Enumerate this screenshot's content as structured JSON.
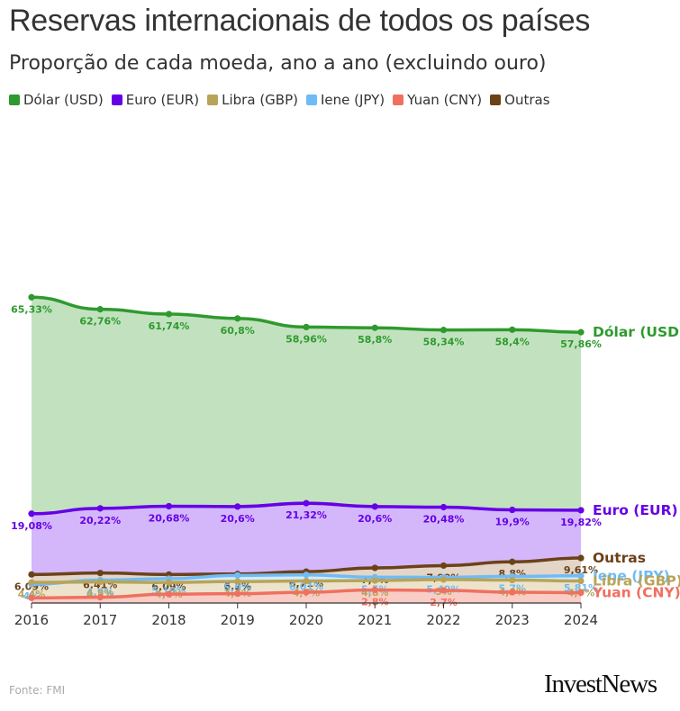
{
  "title": "Reservas internacionais de todos os países",
  "subtitle": "Proporção de cada moeda, ano a ano (excluindo ouro)",
  "source": "Fonte: FMI",
  "brand": "InvestNews",
  "legend": [
    {
      "label": "Dólar (USD)",
      "color": "#2e9a2e"
    },
    {
      "label": "Euro (EUR)",
      "color": "#6600e6"
    },
    {
      "label": "Libra (GBP)",
      "color": "#b8a458"
    },
    {
      "label": "Iene (JPY)",
      "color": "#6fbbf5"
    },
    {
      "label": "Yuan (CNY)",
      "color": "#f07060"
    },
    {
      "label": "Outras",
      "color": "#6b4218"
    }
  ],
  "chart_data": {
    "type": "area",
    "title": "Reservas internacionais de todos os países",
    "subtitle": "Proporção de cada moeda, ano a ano (excluindo ouro)",
    "x": [
      "2016",
      "2017",
      "2018",
      "2019",
      "2020",
      "2021",
      "2022",
      "2023",
      "2024"
    ],
    "xlabel": "",
    "ylabel": "",
    "ylim": [
      0,
      100
    ],
    "grid": false,
    "series": [
      {
        "name": "Dólar (USD)",
        "end_label": "Dólar (USD)",
        "color": "#2e9a2e",
        "fill": "#c2e2bf",
        "values": [
          65.33,
          62.76,
          61.74,
          60.8,
          58.96,
          58.8,
          58.34,
          58.4,
          57.86
        ],
        "labels": [
          "65,33%",
          "62,76%",
          "61,74%",
          "60,8%",
          "58,96%",
          "58,8%",
          "58,34%",
          "58,4%",
          "57,86%"
        ]
      },
      {
        "name": "Euro (EUR)",
        "end_label": "Euro (EUR)",
        "color": "#6600e6",
        "fill": "#d4b7fb",
        "values": [
          19.08,
          20.22,
          20.68,
          20.6,
          21.32,
          20.6,
          20.48,
          19.9,
          19.82
        ],
        "labels": [
          "19,08%",
          "20,22%",
          "20,68%",
          "20,6%",
          "21,32%",
          "20,6%",
          "20,48%",
          "19,9%",
          "19,82%"
        ]
      },
      {
        "name": "Outras",
        "end_label": "Outras",
        "color": "#6b4218",
        "fill": "#e3d5c8",
        "values": [
          6.09,
          6.41,
          6.09,
          6.2,
          6.71,
          7.5,
          7.99,
          8.8,
          9.61
        ],
        "labels": [
          "6,09%",
          "6,41%",
          "6,09%",
          "6,2%",
          "6,71%",
          "7,5%",
          "7,99%",
          "8,8%",
          "9,61%"
        ]
      },
      {
        "name": "Iene (JPY)",
        "end_label": "Iene (JPY)",
        "color": "#6fbbf5",
        "fill": "#d4ebfb",
        "values": [
          4,
          4.9,
          5.19,
          5.9,
          6.01,
          5.5,
          5.49,
          5.7,
          5.81
        ],
        "labels": [
          "4%",
          "4,9%",
          "5,19%",
          "5,9%",
          "6,01%",
          "5,5%",
          "5,49%",
          "5,7%",
          "5,81%"
        ]
      },
      {
        "name": "Libra (GBP)",
        "end_label": "Libra (GBP)",
        "color": "#b8a458",
        "fill": "#ede3cc",
        "values": [
          4.4,
          4.5,
          4.4,
          4.6,
          4.7,
          4.8,
          5,
          4.9,
          4.7
        ],
        "labels": [
          "4,4%",
          "4,5%",
          "4,4%",
          "4,6%",
          "4,7%",
          "4,8%",
          "5%",
          "4,9%",
          "4,7%"
        ]
      },
      {
        "name": "Yuan (CNY)",
        "end_label": "Yuan (CNY)",
        "color": "#f07060",
        "fill": "#f9cdc6",
        "values": [
          1.08,
          1.23,
          1.89,
          2.0,
          2.3,
          2.8,
          2.7,
          2.3,
          2.2
        ],
        "labels": [
          "",
          "",
          "",
          "",
          "",
          "2,8%",
          "2,7%",
          "",
          ""
        ]
      }
    ]
  }
}
